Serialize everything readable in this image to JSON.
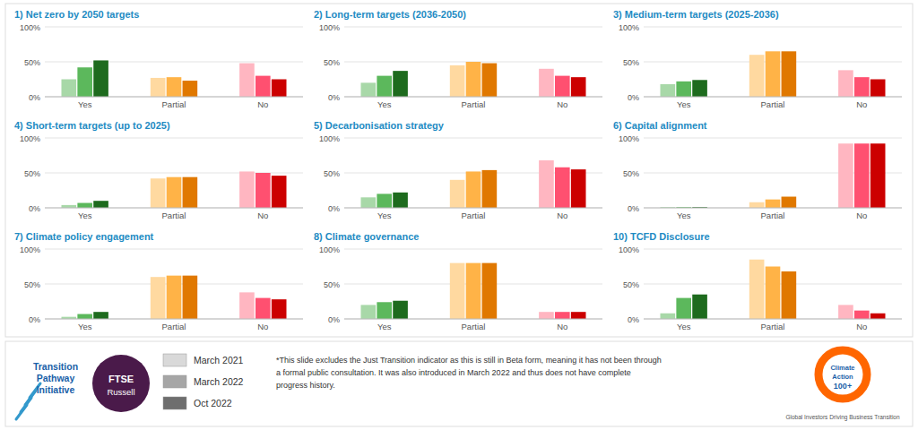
{
  "chart_data": [
    {
      "type": "bar",
      "title": "1) Net zero by 2050 targets",
      "categories": [
        "Yes",
        "Partial",
        "No"
      ],
      "series": [
        {
          "name": "March 2021",
          "values": [
            25,
            27,
            48
          ],
          "colors": [
            "#A8D8A8",
            "#FFD9A0",
            "#FFB6C1"
          ]
        },
        {
          "name": "March 2022",
          "values": [
            42,
            28,
            30
          ],
          "colors": [
            "#5CB85C",
            "#FFB347",
            "#FF5070"
          ]
        },
        {
          "name": "Oct 2022",
          "values": [
            52,
            23,
            25
          ],
          "colors": [
            "#1E6B1E",
            "#E07800",
            "#CC0000"
          ]
        }
      ],
      "ylim": [
        0,
        100
      ],
      "yticks": [
        {
          "value": 0,
          "label": "0%"
        },
        {
          "value": 50,
          "label": "50%"
        },
        {
          "value": 100,
          "label": "100%"
        }
      ],
      "grid": true,
      "legend": "bottom",
      "annotations": [
        "Transition\nPathway\nInitiative",
        "FTSE",
        "Russell",
        "Climate",
        "Action",
        "100+",
        "Global Investors Driving Business Transition",
        "*This slide excludes the Just Transition indicator as this is still in Beta form, meaning it has not been through\na formal public consultation. It was also introduced in March 2022 and thus does not have complete\nprogress history."
      ]
    },
    {
      "type": "bar",
      "title": "2) Long-term targets (2036-2050)",
      "categories": [
        "Yes",
        "Partial",
        "No"
      ],
      "series": [
        {
          "name": "March 2021",
          "values": [
            20,
            45,
            40
          ],
          "colors": [
            "#A8D8A8",
            "#FFD9A0",
            "#FFB6C1"
          ]
        },
        {
          "name": "March 2022",
          "values": [
            30,
            50,
            30
          ],
          "colors": [
            "#5CB85C",
            "#FFB347",
            "#FF5070"
          ]
        },
        {
          "name": "Oct 2022",
          "values": [
            37,
            48,
            28
          ],
          "colors": [
            "#1E6B1E",
            "#E07800",
            "#CC0000"
          ]
        }
      ],
      "ylim": [
        0,
        100
      ],
      "yticks": [
        {
          "value": 0,
          "label": "0%"
        },
        {
          "value": 50,
          "label": "50%"
        },
        {
          "value": 100,
          "label": "100%"
        }
      ],
      "grid": true
    },
    {
      "type": "bar",
      "title": "3) Medium-term targets (2025-2036)",
      "categories": [
        "Yes",
        "Partial",
        "No"
      ],
      "series": [
        {
          "name": "March 2021",
          "values": [
            18,
            60,
            38
          ],
          "colors": [
            "#A8D8A8",
            "#FFD9A0",
            "#FFB6C1"
          ]
        },
        {
          "name": "March 2022",
          "values": [
            22,
            65,
            28
          ],
          "colors": [
            "#5CB85C",
            "#FFB347",
            "#FF5070"
          ]
        },
        {
          "name": "Oct 2022",
          "values": [
            24,
            65,
            25
          ],
          "colors": [
            "#1E6B1E",
            "#E07800",
            "#CC0000"
          ]
        }
      ],
      "ylim": [
        0,
        100
      ],
      "yticks": [
        {
          "value": 0,
          "label": "0%"
        },
        {
          "value": 50,
          "label": "50%"
        },
        {
          "value": 100,
          "label": "100%"
        }
      ],
      "grid": true
    },
    {
      "type": "bar",
      "title": "4) Short-term targets (up to 2025)",
      "categories": [
        "Yes",
        "Partial",
        "No"
      ],
      "series": [
        {
          "name": "March 2021",
          "values": [
            4,
            42,
            52
          ],
          "colors": [
            "#A8D8A8",
            "#FFD9A0",
            "#FFB6C1"
          ]
        },
        {
          "name": "March 2022",
          "values": [
            7,
            44,
            50
          ],
          "colors": [
            "#5CB85C",
            "#FFB347",
            "#FF5070"
          ]
        },
        {
          "name": "Oct 2022",
          "values": [
            10,
            44,
            46
          ],
          "colors": [
            "#1E6B1E",
            "#E07800",
            "#CC0000"
          ]
        }
      ],
      "ylim": [
        0,
        100
      ],
      "yticks": [
        {
          "value": 0,
          "label": "0%"
        },
        {
          "value": 50,
          "label": "50%"
        },
        {
          "value": 100,
          "label": "100%"
        }
      ],
      "grid": true
    },
    {
      "type": "bar",
      "title": "5) Decarbonisation strategy",
      "categories": [
        "Yes",
        "Partial",
        "No"
      ],
      "series": [
        {
          "name": "March 2021",
          "values": [
            15,
            40,
            68
          ],
          "colors": [
            "#A8D8A8",
            "#FFD9A0",
            "#FFB6C1"
          ]
        },
        {
          "name": "March 2022",
          "values": [
            20,
            52,
            58
          ],
          "colors": [
            "#5CB85C",
            "#FFB347",
            "#FF5070"
          ]
        },
        {
          "name": "Oct 2022",
          "values": [
            22,
            54,
            55
          ],
          "colors": [
            "#1E6B1E",
            "#E07800",
            "#CC0000"
          ]
        }
      ],
      "ylim": [
        0,
        100
      ],
      "yticks": [
        {
          "value": 0,
          "label": "0%"
        },
        {
          "value": 50,
          "label": "50%"
        },
        {
          "value": 100,
          "label": "100%"
        }
      ],
      "grid": true
    },
    {
      "type": "bar",
      "title": "6) Capital alignment",
      "categories": [
        "Yes",
        "Partial",
        "No"
      ],
      "series": [
        {
          "name": "March 2021",
          "values": [
            1,
            8,
            92
          ],
          "colors": [
            "#A8D8A8",
            "#FFD9A0",
            "#FFB6C1"
          ]
        },
        {
          "name": "March 2022",
          "values": [
            1,
            12,
            92
          ],
          "colors": [
            "#5CB85C",
            "#FFB347",
            "#FF5070"
          ]
        },
        {
          "name": "Oct 2022",
          "values": [
            1,
            16,
            92
          ],
          "colors": [
            "#1E6B1E",
            "#E07800",
            "#CC0000"
          ]
        }
      ],
      "ylim": [
        0,
        100
      ],
      "yticks": [
        {
          "value": 0,
          "label": "0%"
        },
        {
          "value": 50,
          "label": "50%"
        },
        {
          "value": 100,
          "label": "100%"
        }
      ],
      "grid": true
    },
    {
      "type": "bar",
      "title": "7) Climate policy engagement",
      "categories": [
        "Yes",
        "Partial",
        "No"
      ],
      "series": [
        {
          "name": "March 2021",
          "values": [
            3,
            60,
            38
          ],
          "colors": [
            "#A8D8A8",
            "#FFD9A0",
            "#FFB6C1"
          ]
        },
        {
          "name": "March 2022",
          "values": [
            7,
            62,
            30
          ],
          "colors": [
            "#5CB85C",
            "#FFB347",
            "#FF5070"
          ]
        },
        {
          "name": "Oct 2022",
          "values": [
            10,
            62,
            28
          ],
          "colors": [
            "#1E6B1E",
            "#E07800",
            "#CC0000"
          ]
        }
      ],
      "ylim": [
        0,
        100
      ],
      "yticks": [
        {
          "value": 0,
          "label": "0%"
        },
        {
          "value": 50,
          "label": "50%"
        },
        {
          "value": 100,
          "label": "100%"
        }
      ],
      "grid": true
    },
    {
      "type": "bar",
      "title": "8) Climate governance",
      "categories": [
        "Yes",
        "Partial",
        "No"
      ],
      "series": [
        {
          "name": "March 2021",
          "values": [
            20,
            80,
            10
          ],
          "colors": [
            "#A8D8A8",
            "#FFD9A0",
            "#FFB6C1"
          ]
        },
        {
          "name": "March 2022",
          "values": [
            24,
            80,
            10
          ],
          "colors": [
            "#5CB85C",
            "#FFB347",
            "#FF5070"
          ]
        },
        {
          "name": "Oct 2022",
          "values": [
            26,
            80,
            10
          ],
          "colors": [
            "#1E6B1E",
            "#E07800",
            "#CC0000"
          ]
        }
      ],
      "ylim": [
        0,
        100
      ],
      "yticks": [
        {
          "value": 0,
          "label": "0%"
        },
        {
          "value": 50,
          "label": "50%"
        },
        {
          "value": 100,
          "label": "100%"
        }
      ],
      "grid": true
    },
    {
      "type": "bar",
      "title": "10) TCFD Disclosure",
      "categories": [
        "Yes",
        "Partial",
        "No"
      ],
      "series": [
        {
          "name": "March 2021",
          "values": [
            8,
            85,
            20
          ],
          "colors": [
            "#A8D8A8",
            "#FFD9A0",
            "#FFB6C1"
          ]
        },
        {
          "name": "March 2022",
          "values": [
            30,
            75,
            12
          ],
          "colors": [
            "#5CB85C",
            "#FFB347",
            "#FF5070"
          ]
        },
        {
          "name": "Oct 2022",
          "values": [
            35,
            68,
            8
          ],
          "colors": [
            "#1E6B1E",
            "#E07800",
            "#CC0000"
          ]
        }
      ],
      "ylim": [
        0,
        100
      ],
      "yticks": [
        {
          "value": 0,
          "label": "0%"
        },
        {
          "value": 50,
          "label": "50%"
        },
        {
          "value": 100,
          "label": "100%"
        }
      ],
      "grid": true
    }
  ]
}
